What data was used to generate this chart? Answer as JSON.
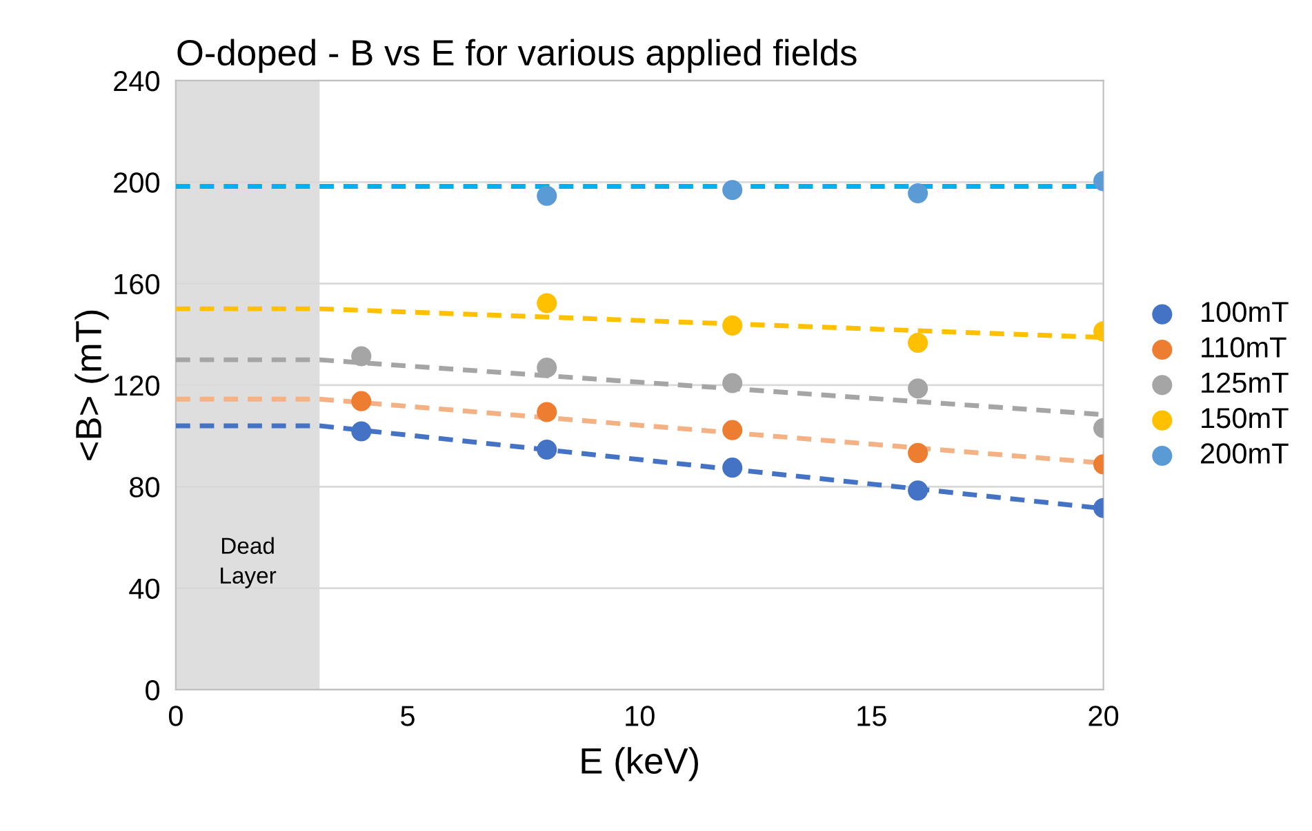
{
  "chart_data": {
    "type": "scatter",
    "title": "O-doped - B vs E for various applied fields",
    "xlabel": "E (keV)",
    "ylabel": "<B> (mT)",
    "xlim": [
      0,
      20
    ],
    "xticks": [
      0,
      5,
      10,
      15,
      20
    ],
    "ylim": [
      0,
      240
    ],
    "yticks": [
      0,
      40,
      80,
      120,
      160,
      200,
      240
    ],
    "grid": "y",
    "legend": "right",
    "marker": "circle",
    "bands": [
      {
        "axis": "x",
        "from": 0,
        "to": 3.1,
        "label": "Dead\nLayer",
        "color": "#dedede"
      }
    ],
    "series": [
      {
        "name": "100mT",
        "color": "#4472c4",
        "x": [
          4,
          8,
          12,
          16,
          20
        ],
        "values": [
          101.8,
          94.6,
          87.5,
          78.5,
          71.6
        ]
      },
      {
        "name": "110mT",
        "color": "#ed7d31",
        "x": [
          4,
          8,
          12,
          16,
          20
        ],
        "values": [
          113.7,
          109.4,
          102.3,
          93.3,
          88.8
        ]
      },
      {
        "name": "125mT",
        "color": "#a5a5a5",
        "x": [
          4,
          8,
          12,
          16,
          20
        ],
        "values": [
          131.4,
          126.9,
          120.8,
          118.7,
          103.1
        ]
      },
      {
        "name": "150mT",
        "color": "#ffc000",
        "x": [
          8,
          12,
          16,
          20
        ],
        "values": [
          152.3,
          143.5,
          136.7,
          141.2
        ]
      },
      {
        "name": "200mT",
        "color": "#5b9bd5",
        "x": [
          8,
          12,
          16,
          20
        ],
        "values": [
          194.6,
          196.9,
          195.6,
          200.4
        ]
      },
      {
        "type": "line",
        "line_style": "dashed",
        "marker": "none",
        "color": "#4472c4",
        "x": [
          0,
          3.1,
          20
        ],
        "values": [
          104,
          104,
          71.4
        ]
      },
      {
        "type": "line",
        "line_style": "dashed",
        "marker": "none",
        "color": "#f4b183",
        "x": [
          0,
          3.1,
          20
        ],
        "values": [
          114.5,
          114.5,
          89.3
        ]
      },
      {
        "type": "line",
        "line_style": "dashed",
        "marker": "none",
        "color": "#a5a5a5",
        "x": [
          0,
          3.1,
          20
        ],
        "values": [
          130,
          130,
          108.4
        ]
      },
      {
        "type": "line",
        "line_style": "dashed",
        "marker": "none",
        "color": "#ffc000",
        "x": [
          0,
          3.1,
          20
        ],
        "values": [
          150.1,
          150.1,
          138.8
        ]
      },
      {
        "type": "line",
        "line_style": "dashed",
        "marker": "none",
        "color": "#00b0f0",
        "x": [
          0,
          3.1,
          20
        ],
        "values": [
          198.3,
          198.3,
          198.3
        ]
      }
    ]
  }
}
